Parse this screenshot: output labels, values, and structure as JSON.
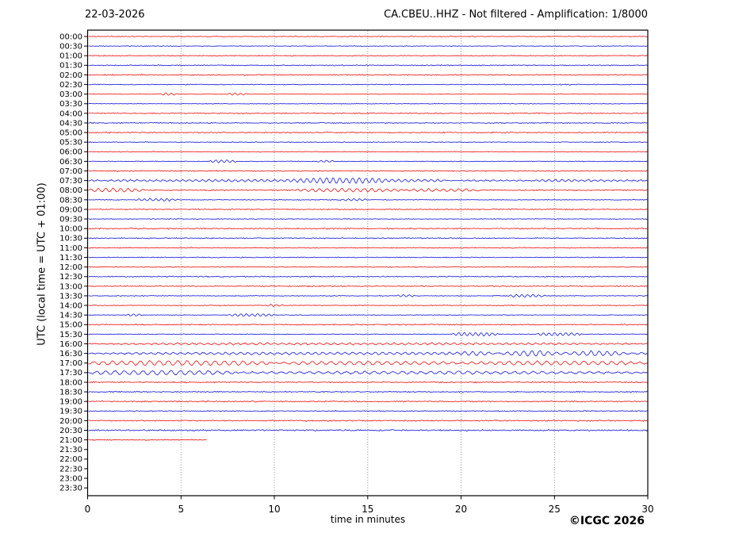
{
  "header": {
    "date": "22-03-2026",
    "title": "CA.CBEU..HHZ - Not filtered - Amplification: 1/8000"
  },
  "footer": {
    "copyright": "©ICGC 2026"
  },
  "chart_data": {
    "type": "line",
    "subtype": "helicorder-seismogram",
    "title": "CA.CBEU..HHZ - Not filtered - Amplification: 1/8000",
    "date_label": "22-03-2026",
    "xlabel": "time in minutes",
    "ylabel": "UTC (local time = UTC + 01:00)",
    "xlim": [
      0,
      30
    ],
    "x_ticks": [
      0,
      5,
      10,
      15,
      20,
      25,
      30
    ],
    "grid_minutes": [
      5,
      10,
      15,
      20,
      25
    ],
    "grid": "vertical-dotted",
    "trace_colors": {
      "hour": "#f01010",
      "half_hour": "#1515e0"
    },
    "rows": [
      {
        "label": "00:00",
        "color": "hour",
        "amp": 0.7,
        "end": 30,
        "events": []
      },
      {
        "label": "00:30",
        "color": "half_hour",
        "amp": 0.6,
        "end": 30,
        "events": []
      },
      {
        "label": "01:00",
        "color": "hour",
        "amp": 0.8,
        "end": 30,
        "events": []
      },
      {
        "label": "01:30",
        "color": "half_hour",
        "amp": 0.8,
        "end": 30,
        "events": []
      },
      {
        "label": "02:00",
        "color": "hour",
        "amp": 0.9,
        "end": 30,
        "events": []
      },
      {
        "label": "02:30",
        "color": "half_hour",
        "amp": 0.7,
        "end": 30,
        "events": []
      },
      {
        "label": "03:00",
        "color": "hour",
        "amp": 0.5,
        "end": 30,
        "events": [
          [
            3.8,
            4.8,
            1.3,
            0.3
          ],
          [
            7.4,
            8.6,
            1.2,
            0.3
          ]
        ]
      },
      {
        "label": "03:30",
        "color": "half_hour",
        "amp": 0.6,
        "end": 30,
        "events": []
      },
      {
        "label": "04:00",
        "color": "hour",
        "amp": 0.9,
        "end": 30,
        "events": []
      },
      {
        "label": "04:30",
        "color": "half_hour",
        "amp": 0.9,
        "end": 30,
        "events": []
      },
      {
        "label": "05:00",
        "color": "hour",
        "amp": 0.9,
        "end": 30,
        "events": []
      },
      {
        "label": "05:30",
        "color": "half_hour",
        "amp": 0.7,
        "end": 30,
        "events": []
      },
      {
        "label": "06:00",
        "color": "hour",
        "amp": 0.7,
        "end": 30,
        "events": []
      },
      {
        "label": "06:30",
        "color": "half_hour",
        "amp": 0.6,
        "end": 30,
        "events": [
          [
            6.5,
            8,
            1.6,
            0.3
          ],
          [
            12.3,
            13.3,
            1.0,
            0.3
          ]
        ]
      },
      {
        "label": "07:00",
        "color": "hour",
        "amp": 0.9,
        "end": 30,
        "events": []
      },
      {
        "label": "07:30",
        "color": "half_hour",
        "amp": 0.8,
        "end": 30,
        "events": [
          [
            0,
            30,
            1.3,
            0.35
          ],
          [
            11,
            16,
            1.9,
            0.35
          ],
          [
            19,
            24,
            1.9,
            0.35
          ]
        ]
      },
      {
        "label": "08:00",
        "color": "hour",
        "amp": 0.9,
        "end": 30,
        "events": [
          [
            0,
            3,
            2.2,
            0.4
          ],
          [
            11,
            17,
            2.0,
            0.4
          ],
          [
            17,
            21,
            1.5,
            0.4
          ]
        ]
      },
      {
        "label": "08:30",
        "color": "half_hour",
        "amp": 0.7,
        "end": 30,
        "events": [
          [
            2.5,
            5,
            1.4,
            0.3
          ],
          [
            13.5,
            15,
            1.3,
            0.3
          ]
        ]
      },
      {
        "label": "09:00",
        "color": "hour",
        "amp": 0.9,
        "end": 30,
        "events": []
      },
      {
        "label": "09:30",
        "color": "half_hour",
        "amp": 0.7,
        "end": 30,
        "events": []
      },
      {
        "label": "10:00",
        "color": "hour",
        "amp": 0.9,
        "end": 30,
        "events": []
      },
      {
        "label": "10:30",
        "color": "half_hour",
        "amp": 0.9,
        "end": 30,
        "events": []
      },
      {
        "label": "11:00",
        "color": "hour",
        "amp": 0.9,
        "end": 30,
        "events": []
      },
      {
        "label": "11:30",
        "color": "half_hour",
        "amp": 0.7,
        "end": 30,
        "events": []
      },
      {
        "label": "12:00",
        "color": "hour",
        "amp": 0.7,
        "end": 30,
        "events": []
      },
      {
        "label": "12:30",
        "color": "half_hour",
        "amp": 0.9,
        "end": 30,
        "events": []
      },
      {
        "label": "13:00",
        "color": "hour",
        "amp": 0.9,
        "end": 30,
        "events": []
      },
      {
        "label": "13:30",
        "color": "half_hour",
        "amp": 0.8,
        "end": 30,
        "events": [
          [
            16.5,
            17.5,
            1.3,
            0.3
          ],
          [
            22.5,
            24.5,
            1.5,
            0.3
          ]
        ]
      },
      {
        "label": "14:00",
        "color": "hour",
        "amp": 0.7,
        "end": 30,
        "events": [
          [
            9.5,
            10.5,
            1.2,
            0.3
          ]
        ]
      },
      {
        "label": "14:30",
        "color": "half_hour",
        "amp": 0.6,
        "end": 30,
        "events": [
          [
            2,
            3,
            1.2,
            0.3
          ],
          [
            7.5,
            10,
            1.5,
            0.3
          ]
        ]
      },
      {
        "label": "15:00",
        "color": "hour",
        "amp": 0.9,
        "end": 30,
        "events": []
      },
      {
        "label": "15:30",
        "color": "half_hour",
        "amp": 0.6,
        "end": 30,
        "events": [
          [
            19.5,
            22,
            2.0,
            0.3
          ],
          [
            24,
            26.5,
            1.8,
            0.3
          ]
        ]
      },
      {
        "label": "16:00",
        "color": "hour",
        "amp": 0.9,
        "end": 30,
        "events": [
          [
            0,
            30,
            1.0,
            0.4
          ]
        ]
      },
      {
        "label": "16:30",
        "color": "half_hour",
        "amp": 0.8,
        "end": 30,
        "events": [
          [
            0,
            30,
            1.3,
            0.4
          ],
          [
            20,
            30,
            2.2,
            0.45
          ]
        ]
      },
      {
        "label": "17:00",
        "color": "hour",
        "amp": 0.9,
        "end": 30,
        "events": [
          [
            0,
            10,
            2.8,
            0.5
          ],
          [
            10,
            20,
            2.0,
            0.5
          ],
          [
            20,
            30,
            2.3,
            0.5
          ]
        ]
      },
      {
        "label": "17:30",
        "color": "half_hour",
        "amp": 0.9,
        "end": 30,
        "events": [
          [
            0,
            8,
            2.6,
            0.5
          ],
          [
            8,
            30,
            1.4,
            0.5
          ]
        ]
      },
      {
        "label": "18:00",
        "color": "hour",
        "amp": 1.0,
        "end": 30,
        "events": []
      },
      {
        "label": "18:30",
        "color": "half_hour",
        "amp": 1.0,
        "end": 30,
        "events": []
      },
      {
        "label": "19:00",
        "color": "hour",
        "amp": 1.0,
        "end": 30,
        "events": []
      },
      {
        "label": "19:30",
        "color": "half_hour",
        "amp": 0.9,
        "end": 30,
        "events": []
      },
      {
        "label": "20:00",
        "color": "hour",
        "amp": 1.0,
        "end": 30,
        "events": []
      },
      {
        "label": "20:30",
        "color": "half_hour",
        "amp": 1.2,
        "end": 30,
        "events": []
      },
      {
        "label": "21:00",
        "color": "hour",
        "amp": 1.0,
        "end": 6.4,
        "events": []
      },
      {
        "label": "21:30",
        "color": "half_hour",
        "amp": 0,
        "end": 0,
        "events": []
      },
      {
        "label": "22:00",
        "color": "hour",
        "amp": 0,
        "end": 0,
        "events": []
      },
      {
        "label": "22:30",
        "color": "half_hour",
        "amp": 0,
        "end": 0,
        "events": []
      },
      {
        "label": "23:00",
        "color": "hour",
        "amp": 0,
        "end": 0,
        "events": []
      },
      {
        "label": "23:30",
        "color": "half_hour",
        "amp": 0,
        "end": 0,
        "events": []
      }
    ]
  }
}
